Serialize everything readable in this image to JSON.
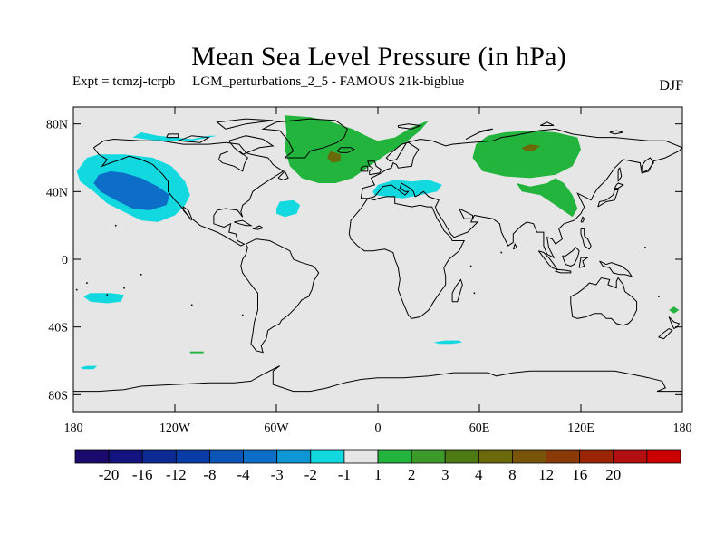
{
  "title": "Mean Sea Level Pressure (in hPa)",
  "subtitle_left": "Expt = tcmzj-tcrpb     LGM_perturbations_2_5 - FAMOUS 21k-bigblue",
  "season": "DJF",
  "map": {
    "projection": "cylindrical equidistant",
    "lon_range": [
      -180,
      180
    ],
    "lat_range": [
      -90,
      90
    ],
    "background_color": "#e6e6e6",
    "coastline_color": "#000000",
    "lat_ticks": [
      {
        "lat": 80,
        "label": "80N"
      },
      {
        "lat": 40,
        "label": "40N"
      },
      {
        "lat": 0,
        "label": "0"
      },
      {
        "lat": -40,
        "label": "40S"
      },
      {
        "lat": -80,
        "label": "80S"
      }
    ],
    "lon_ticks": [
      {
        "lon": -180,
        "label": "180"
      },
      {
        "lon": -120,
        "label": "120W"
      },
      {
        "lon": -60,
        "label": "60W"
      },
      {
        "lon": 0,
        "label": "0"
      },
      {
        "lon": 60,
        "label": "60E"
      },
      {
        "lon": 120,
        "label": "120E"
      },
      {
        "lon": 180,
        "label": "180"
      }
    ]
  },
  "colorbar": {
    "colors": [
      "#1a0a6e",
      "#141480",
      "#0c2a94",
      "#0a3ca8",
      "#0b55b8",
      "#0d6ec8",
      "#0e96d4",
      "#12d8e0",
      "#e6e6e6",
      "#22b43c",
      "#3c9a28",
      "#4e7a14",
      "#6a6a0a",
      "#7a5408",
      "#8a3a06",
      "#9a2404",
      "#b21010",
      "#cc0000"
    ],
    "boundary_labels": [
      "-20",
      "-16",
      "-12",
      "-8",
      "-4",
      "-3",
      "-2",
      "-1",
      "1",
      "2",
      "3",
      "4",
      "8",
      "12",
      "16",
      "20"
    ]
  },
  "chart_data": {
    "type": "heatmap",
    "variable": "Mean Sea Level Pressure",
    "units": "hPa",
    "levels": [
      -20,
      -16,
      -12,
      -8,
      -4,
      -3,
      -2,
      -1,
      1,
      2,
      3,
      4,
      8,
      12,
      16,
      20
    ],
    "regions": [
      {
        "level_range": [
          -4,
          -3
        ],
        "lon": [
          -170,
          -120
        ],
        "lat": [
          25,
          55
        ]
      },
      {
        "level_range": [
          -2,
          -1
        ],
        "lon": [
          -175,
          -105
        ],
        "lat": [
          20,
          75
        ]
      },
      {
        "level_range": [
          -2,
          -1
        ],
        "lon": [
          -60,
          -45
        ],
        "lat": [
          25,
          35
        ]
      },
      {
        "level_range": [
          -2,
          -1
        ],
        "lon": [
          -10,
          40
        ],
        "lat": [
          35,
          48
        ]
      },
      {
        "level_range": [
          -2,
          -1
        ],
        "lon": [
          -170,
          -150
        ],
        "lat": [
          -26,
          -20
        ]
      },
      {
        "level_range": [
          -2,
          -1
        ],
        "lon": [
          35,
          50
        ],
        "lat": [
          -50,
          -48
        ]
      },
      {
        "level_range": [
          -2,
          -1
        ],
        "lon": [
          -175,
          -165
        ],
        "lat": [
          -65,
          -63
        ]
      },
      {
        "level_range": [
          1,
          2
        ],
        "lon": [
          -55,
          30
        ],
        "lat": [
          45,
          85
        ]
      },
      {
        "level_range": [
          1,
          2
        ],
        "lon": [
          55,
          120
        ],
        "lat": [
          45,
          75
        ]
      },
      {
        "level_range": [
          1,
          2
        ],
        "lon": [
          80,
          120
        ],
        "lat": [
          25,
          45
        ]
      },
      {
        "level_range": [
          1,
          2
        ],
        "lon": [
          -110,
          -103
        ],
        "lat": [
          -55,
          -54
        ]
      },
      {
        "level_range": [
          1,
          2
        ],
        "lon": [
          170,
          178
        ],
        "lat": [
          -31,
          -28
        ]
      },
      {
        "level_range": [
          3,
          4
        ],
        "lon": [
          -30,
          -22
        ],
        "lat": [
          57,
          64
        ]
      },
      {
        "level_range": [
          3,
          4
        ],
        "lon": [
          85,
          95
        ],
        "lat": [
          64,
          68
        ]
      }
    ]
  }
}
